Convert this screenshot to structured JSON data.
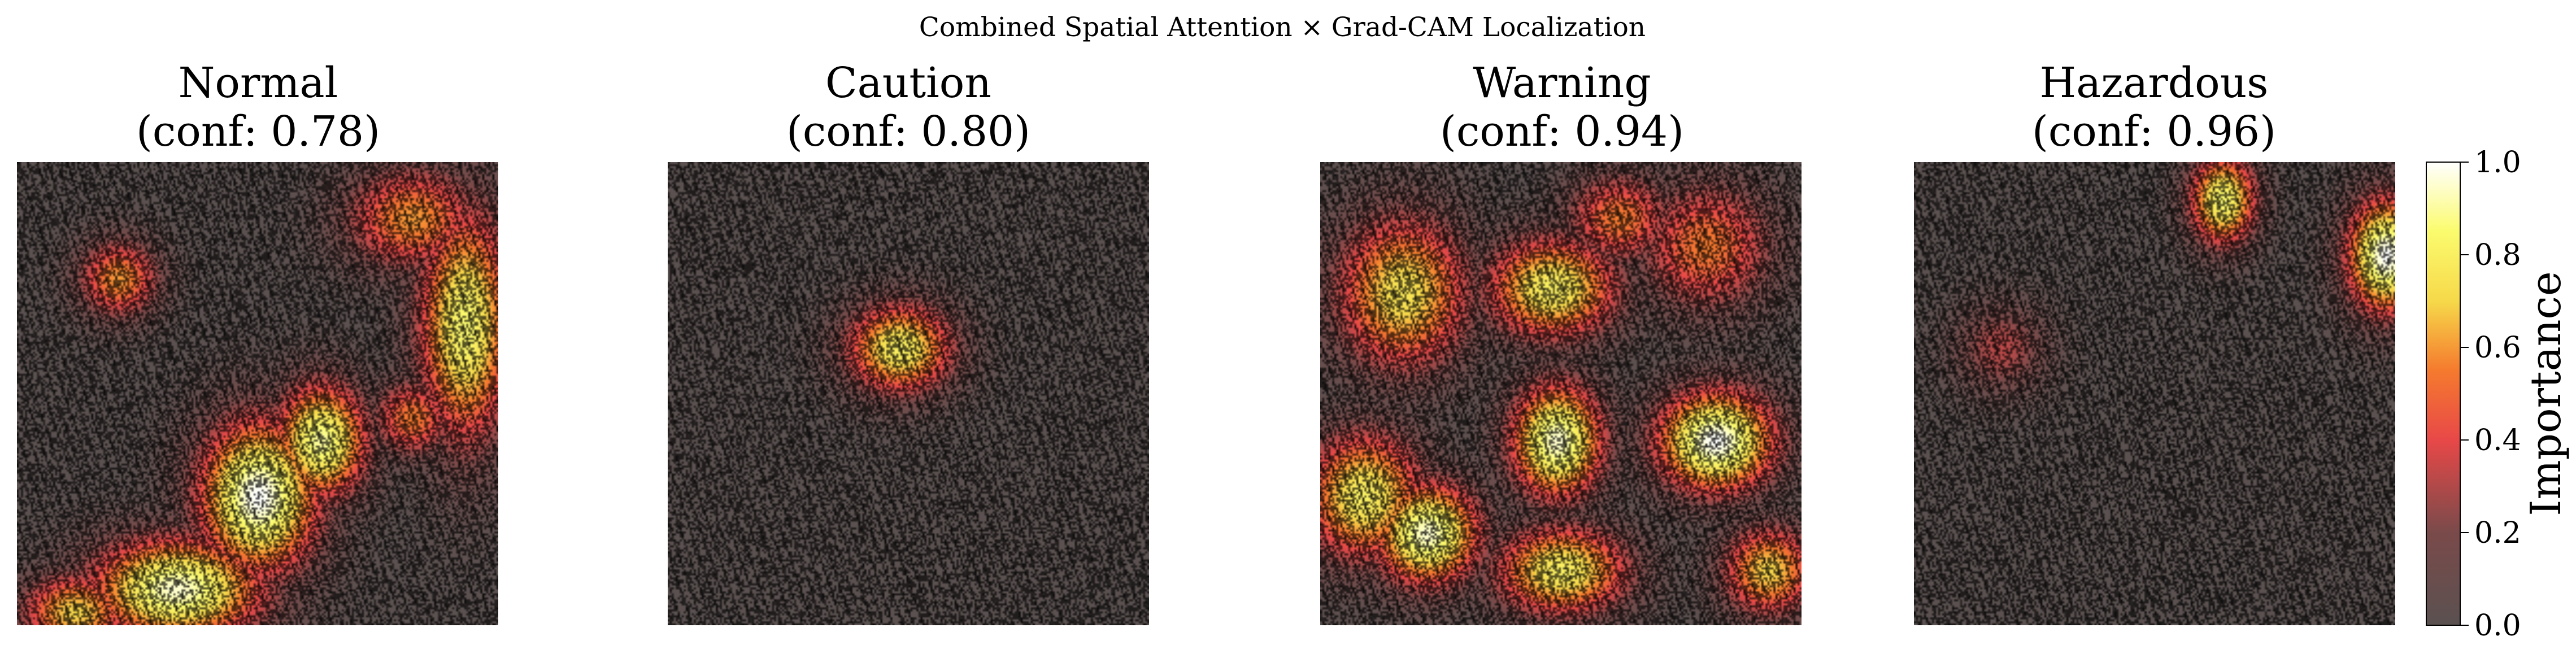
{
  "figure": {
    "suptitle": "Combined Spatial Attention × Grad-CAM Localization"
  },
  "colors": {
    "background": "#ffffff",
    "text": "#000000",
    "cmap_stops": [
      "#5a5150",
      "#7a4a4a",
      "#e84848",
      "#f57a2e",
      "#f6d94a",
      "#fbfb6e",
      "#ffffff"
    ]
  },
  "chart_data": [
    {
      "type": "heatmap",
      "title_line1": "Normal",
      "title_line2": "(conf: 0.78)",
      "hotspots": [
        {
          "x": 0.21,
          "y": 0.25,
          "sx": 0.06,
          "sy": 0.06,
          "v": 0.6
        },
        {
          "x": 0.63,
          "y": 0.6,
          "sx": 0.07,
          "sy": 0.09,
          "v": 0.9
        },
        {
          "x": 0.5,
          "y": 0.72,
          "sx": 0.09,
          "sy": 0.12,
          "v": 1.0
        },
        {
          "x": 0.33,
          "y": 0.92,
          "sx": 0.13,
          "sy": 0.08,
          "v": 0.95
        },
        {
          "x": 0.12,
          "y": 0.97,
          "sx": 0.08,
          "sy": 0.06,
          "v": 0.7
        },
        {
          "x": 0.93,
          "y": 0.35,
          "sx": 0.07,
          "sy": 0.18,
          "v": 0.85
        },
        {
          "x": 0.82,
          "y": 0.12,
          "sx": 0.1,
          "sy": 0.08,
          "v": 0.6
        },
        {
          "x": 0.82,
          "y": 0.55,
          "sx": 0.06,
          "sy": 0.06,
          "v": 0.55
        }
      ]
    },
    {
      "type": "heatmap",
      "title_line1": "Caution",
      "title_line2": "(conf: 0.80)",
      "hotspots": [
        {
          "x": 0.48,
          "y": 0.4,
          "sx": 0.08,
          "sy": 0.07,
          "v": 0.8
        }
      ]
    },
    {
      "type": "heatmap",
      "title_line1": "Warning",
      "title_line2": "(conf: 0.94)",
      "hotspots": [
        {
          "x": 0.17,
          "y": 0.28,
          "sx": 0.1,
          "sy": 0.12,
          "v": 0.75
        },
        {
          "x": 0.48,
          "y": 0.27,
          "sx": 0.1,
          "sy": 0.08,
          "v": 0.8
        },
        {
          "x": 0.09,
          "y": 0.72,
          "sx": 0.09,
          "sy": 0.1,
          "v": 0.8
        },
        {
          "x": 0.22,
          "y": 0.8,
          "sx": 0.08,
          "sy": 0.08,
          "v": 0.95
        },
        {
          "x": 0.49,
          "y": 0.6,
          "sx": 0.07,
          "sy": 0.09,
          "v": 0.95
        },
        {
          "x": 0.82,
          "y": 0.6,
          "sx": 0.09,
          "sy": 0.08,
          "v": 1.0
        },
        {
          "x": 0.5,
          "y": 0.88,
          "sx": 0.1,
          "sy": 0.07,
          "v": 0.8
        },
        {
          "x": 0.93,
          "y": 0.88,
          "sx": 0.07,
          "sy": 0.07,
          "v": 0.7
        },
        {
          "x": 0.8,
          "y": 0.18,
          "sx": 0.1,
          "sy": 0.1,
          "v": 0.55
        },
        {
          "x": 0.62,
          "y": 0.12,
          "sx": 0.08,
          "sy": 0.07,
          "v": 0.55
        }
      ]
    },
    {
      "type": "heatmap",
      "title_line1": "Hazardous",
      "title_line2": "(conf: 0.96)",
      "hotspots": [
        {
          "x": 0.64,
          "y": 0.08,
          "sx": 0.05,
          "sy": 0.07,
          "v": 0.85
        },
        {
          "x": 0.98,
          "y": 0.2,
          "sx": 0.06,
          "sy": 0.09,
          "v": 1.0
        },
        {
          "x": 0.18,
          "y": 0.4,
          "sx": 0.07,
          "sy": 0.07,
          "v": 0.32
        }
      ]
    }
  ],
  "colorbar": {
    "label": "Importance",
    "ticks": [
      "0.0",
      "0.2",
      "0.4",
      "0.6",
      "0.8",
      "1.0"
    ],
    "vmin": 0.0,
    "vmax": 1.0
  }
}
